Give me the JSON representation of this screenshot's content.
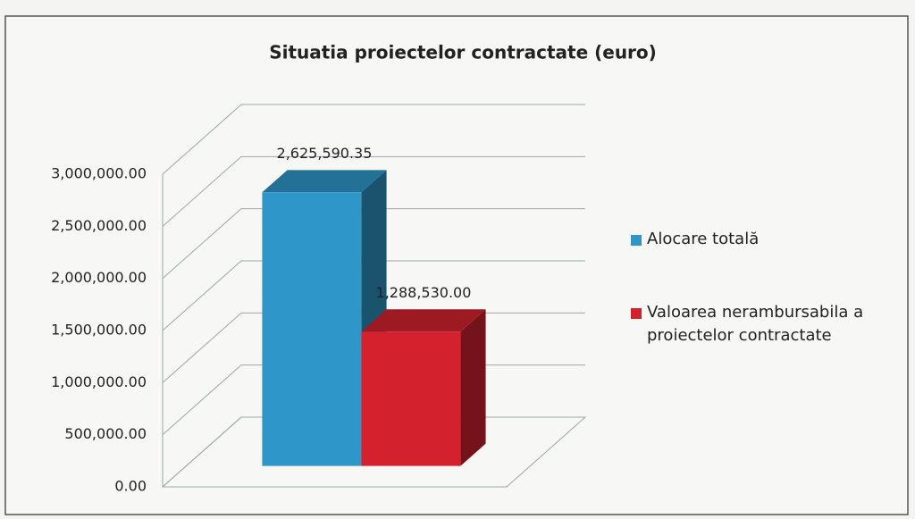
{
  "chart_data": {
    "type": "bar3d",
    "title": "Situatia proiectelor contractate (euro)",
    "categories": [
      null
    ],
    "series": [
      {
        "name": "Alocare totală",
        "color": "#2e96c8",
        "values": [
          2625590.35
        ],
        "value_labels": [
          "2,625,590.35"
        ]
      },
      {
        "name": "Valoarea nerambursabila a proiectelor contractate",
        "color": "#d3222e",
        "values": [
          1288530
        ],
        "value_labels": [
          "1,288,530.00"
        ]
      }
    ],
    "ylim": [
      0,
      3000000
    ],
    "yticks": [
      {
        "value": 0,
        "label": "0.00"
      },
      {
        "value": 500000,
        "label": "500,000.00"
      },
      {
        "value": 1000000,
        "label": "1,000,000.00"
      },
      {
        "value": 1500000,
        "label": "1,500,000.00"
      },
      {
        "value": 2000000,
        "label": "2,000,000.00"
      },
      {
        "value": 2500000,
        "label": "2,500,000.00"
      },
      {
        "value": 3000000,
        "label": "3,000,000.00"
      }
    ],
    "grid": true,
    "legend": "right"
  }
}
